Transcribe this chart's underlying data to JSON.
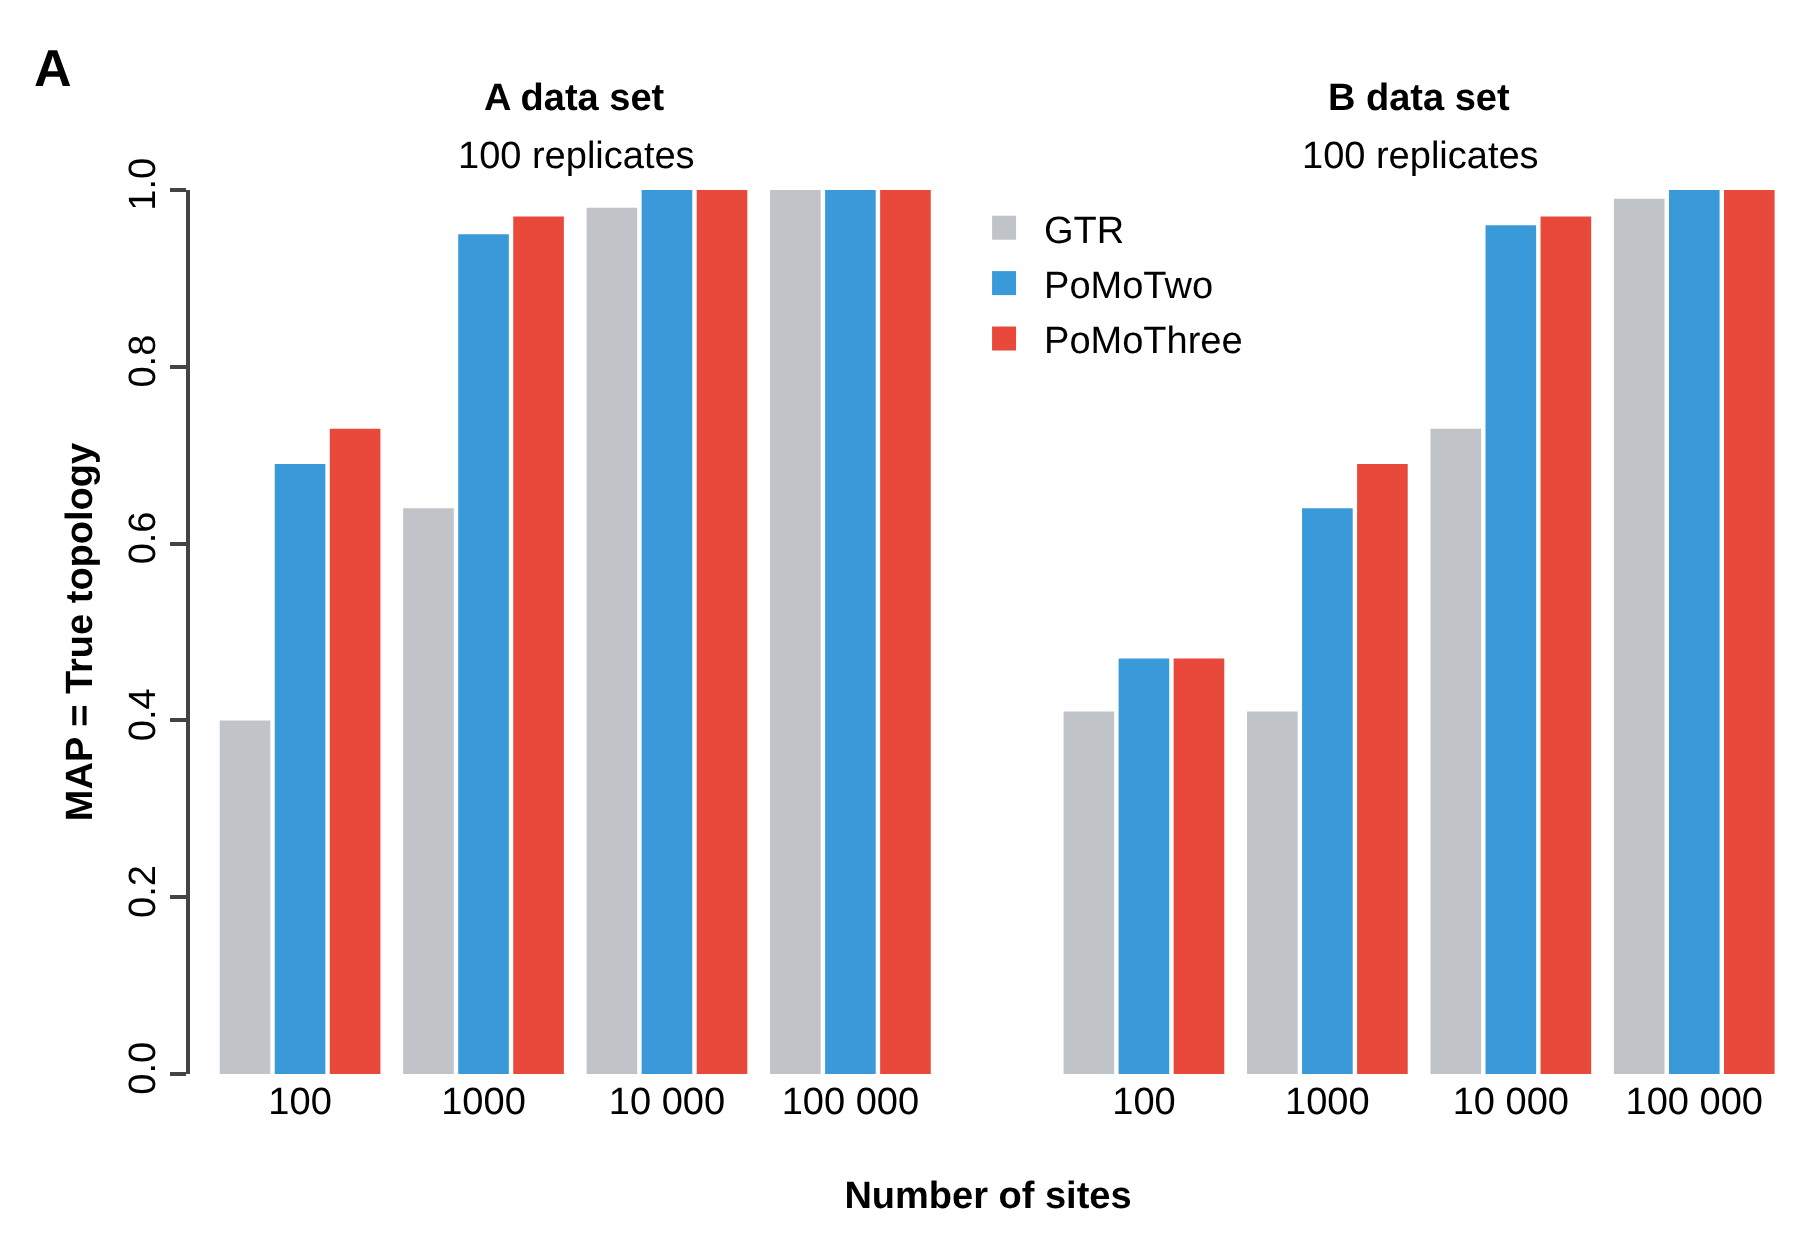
{
  "chart_data": {
    "type": "bar",
    "title": "A",
    "xlabel": "Number of sites",
    "ylabel": "MAP = True topology",
    "annotations": [
      "A data set",
      "100 replicates",
      "B data set",
      "100 replicates"
    ],
    "categories": [
      "100",
      "1000",
      "10 000",
      "100 000",
      "100",
      "1000",
      "10 000",
      "100 000"
    ],
    "series": [
      {
        "name": "GTR",
        "color": "#c0c4c8",
        "values": [
          0.4,
          0.64,
          0.98,
          1.0,
          0.41,
          0.41,
          0.73,
          0.99
        ]
      },
      {
        "name": "PoMoTwo",
        "color": "#3a9ad9",
        "values": [
          0.69,
          0.95,
          1.0,
          1.0,
          0.47,
          0.64,
          0.96,
          1.0
        ]
      },
      {
        "name": "PoMoThree",
        "color": "#e8493b",
        "values": [
          0.73,
          0.97,
          1.0,
          1.0,
          0.47,
          0.69,
          0.97,
          1.0
        ]
      }
    ],
    "ylim": [
      0,
      1
    ],
    "yticks": [
      {
        "value": 0,
        "label": "0.0"
      },
      0.2,
      0.4,
      0.6,
      0.8,
      {
        "value": 1,
        "label": "1.0"
      }
    ],
    "grid": false,
    "legend": "top"
  }
}
